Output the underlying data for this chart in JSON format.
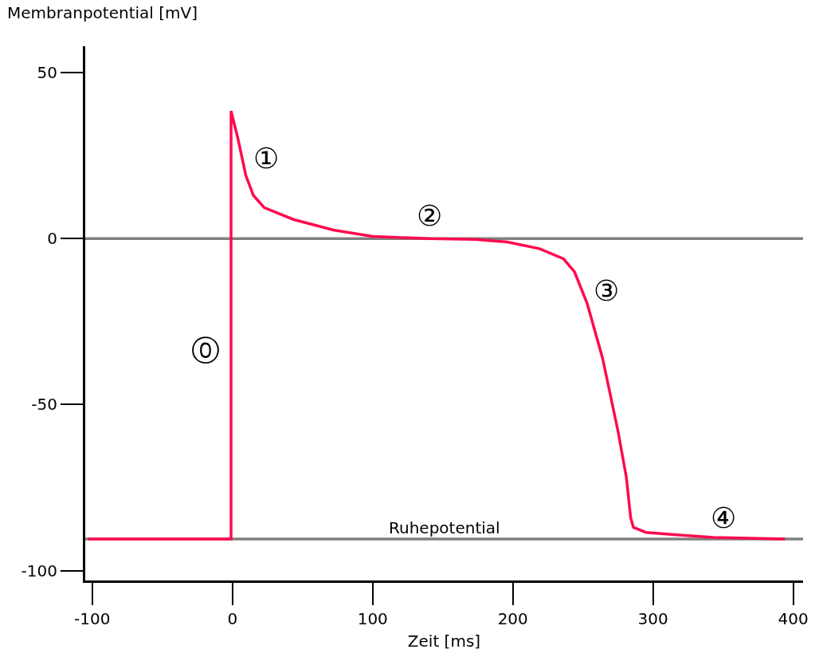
{
  "chart_data": {
    "type": "line",
    "xlabel": "Zeit [ms]",
    "ylabel": "Membranpotential [mV]",
    "xlim": [
      -105,
      407
    ],
    "xticks": [
      -100,
      0,
      100,
      200,
      300,
      400
    ],
    "ylim": [
      -103,
      58
    ],
    "yticks": [
      -100,
      -50,
      0,
      50
    ],
    "grid": false,
    "marker": "none",
    "line_style": "solid",
    "series": [
      {
        "color": "#ff0a4e",
        "x": [
          -103,
          -1,
          -1,
          4,
          9.6,
          15,
          22.6,
          43.5,
          72,
          100,
          140,
          173,
          196,
          219,
          236,
          244,
          253,
          264,
          275,
          281,
          284,
          286,
          295,
          315,
          343,
          394
        ],
        "values": [
          -90.5,
          -90.5,
          38.5,
          30,
          19,
          13,
          9.4,
          5.8,
          2.6,
          0.7,
          0,
          -0.2,
          -1,
          -3,
          -6,
          -10,
          -19.5,
          -36,
          -58,
          -72,
          -84,
          -87,
          -88.5,
          -89.2,
          -90,
          -90.5
        ]
      }
    ],
    "ref_lines": [
      {
        "axis": "y",
        "value": 0,
        "label": null,
        "color": "#808080"
      },
      {
        "axis": "y",
        "value": -90.5,
        "label": "Ruhepotential",
        "color": "#808080"
      }
    ],
    "annotations": [
      "⓪",
      "①",
      "②",
      "③",
      "④"
    ]
  }
}
